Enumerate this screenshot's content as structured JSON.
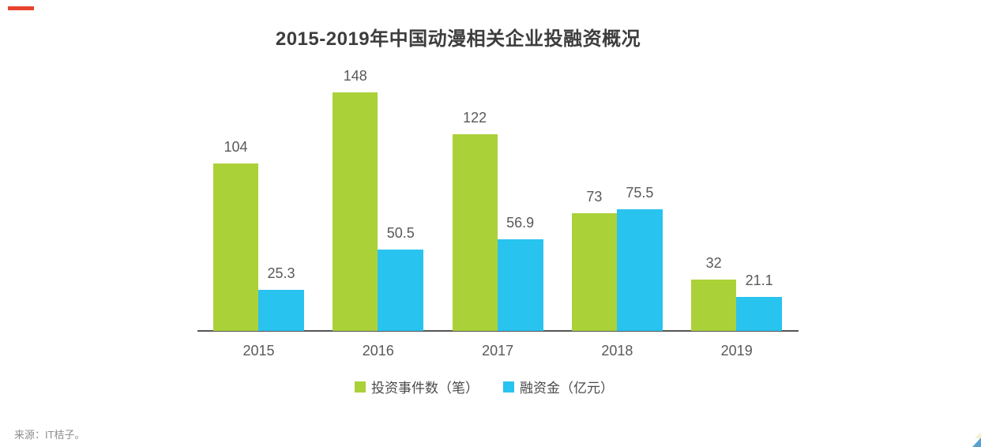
{
  "title": {
    "text": "2015-2019年中国动漫相关企业投融资概况"
  },
  "chart_data": {
    "type": "bar",
    "title": "2015-2019年中国动漫相关企业投融资概况",
    "categories": [
      "2015",
      "2016",
      "2017",
      "2018",
      "2019"
    ],
    "series": [
      {
        "name": "投资事件数（笔）",
        "color": "#abd139",
        "values": [
          104,
          148,
          122,
          73,
          32
        ]
      },
      {
        "name": "融资金（亿元）",
        "color": "#29c3ef",
        "values": [
          25.3,
          50.5,
          56.9,
          75.5,
          21.1
        ]
      }
    ],
    "ylim": [
      0,
      150
    ],
    "grid": false,
    "value_labels": true,
    "legend_position": "bottom",
    "xlabel": "",
    "ylabel": ""
  },
  "footer": {
    "source": "来源：IT桔子。"
  },
  "decorations": {
    "top_left_dash_color": "#e8432d",
    "corner_triangle_blue": "#5ba0ce",
    "corner_triangle_yellow": "#f5f1cf"
  },
  "colors": {
    "background": "#ffffff",
    "axis_line": "#555555",
    "value_label_text": "#595959",
    "category_label_text": "#595959",
    "title_text": "#3d3d3d",
    "legend_text": "#4a4a4a",
    "source_text": "#8e8e8e"
  }
}
